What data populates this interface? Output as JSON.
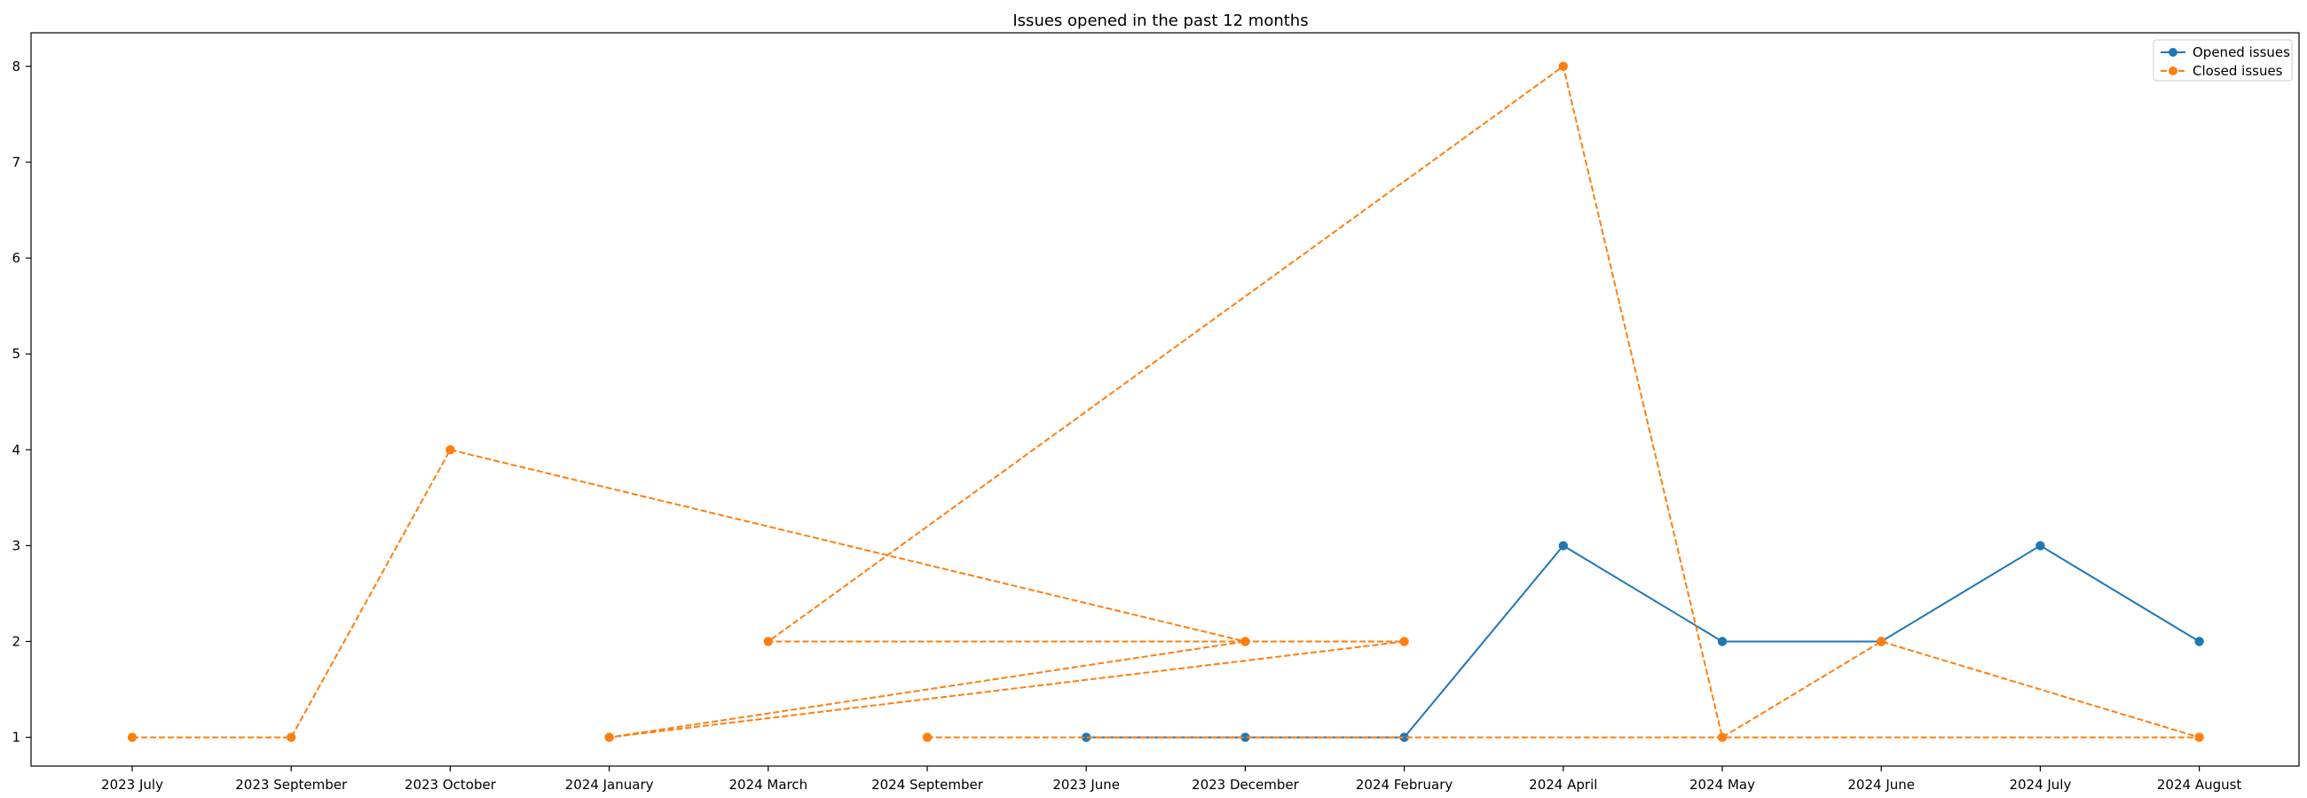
{
  "chart_data": {
    "type": "line",
    "title": "Issues opened in the past 12 months",
    "xlabel": "",
    "ylabel": "",
    "categories": [
      "2023 July",
      "2023 September",
      "2023 October",
      "2024 January",
      "2024 March",
      "2024 September",
      "2023 June",
      "2023 December",
      "2024 February",
      "2024 April",
      "2024 May",
      "2024 June",
      "2024 July",
      "2024 August"
    ],
    "ylim": [
      0.7,
      8.35
    ],
    "yticks": [
      1,
      2,
      3,
      4,
      5,
      6,
      7,
      8
    ],
    "grid": false,
    "legend": "top-right",
    "series": [
      {
        "name": "Opened issues",
        "color": "#1f77b4",
        "style": "solid",
        "points": [
          {
            "x": "2023 June",
            "y": 1
          },
          {
            "x": "2023 December",
            "y": 1
          },
          {
            "x": "2024 February",
            "y": 1
          },
          {
            "x": "2024 April",
            "y": 3
          },
          {
            "x": "2024 May",
            "y": 2
          },
          {
            "x": "2024 June",
            "y": 2
          },
          {
            "x": "2024 July",
            "y": 3
          },
          {
            "x": "2024 August",
            "y": 2
          }
        ]
      },
      {
        "name": "Closed issues",
        "color": "#ff7f0e",
        "style": "dashed",
        "points": [
          {
            "x": "2023 July",
            "y": 1
          },
          {
            "x": "2023 September",
            "y": 1
          },
          {
            "x": "2023 October",
            "y": 4
          },
          {
            "x": "2023 December",
            "y": 2
          },
          {
            "x": "2024 February",
            "y": 2
          },
          {
            "x": "2024 January",
            "y": 1
          },
          {
            "x": "2023 December",
            "y": 2
          },
          {
            "x": "2024 March",
            "y": 2
          },
          {
            "x": "2024 April",
            "y": 8
          },
          {
            "x": "2024 May",
            "y": 1
          },
          {
            "x": "2024 June",
            "y": 2
          },
          {
            "x": "2024 August",
            "y": 1
          },
          {
            "x": "2024 September",
            "y": 1
          }
        ]
      }
    ]
  }
}
